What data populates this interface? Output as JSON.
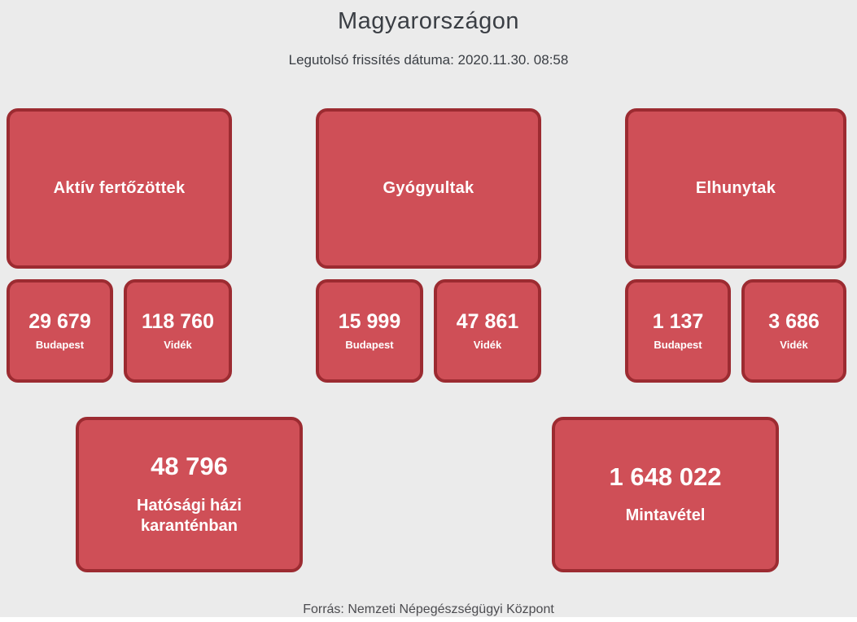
{
  "page": {
    "title": "Magyarországon",
    "subtitle": "Legutolsó frissítés dátuma: 2020.11.30. 08:58",
    "source": "Forrás: Nemzeti Népegészségügyi Központ"
  },
  "colors": {
    "background": "#ebebeb",
    "card_fill": "#cf4f57",
    "card_border": "#9c2b31",
    "card_text": "#ffffff",
    "heading_text": "#3a3e44",
    "source_text": "#4c4c50"
  },
  "categories": [
    {
      "label": "Aktív fertőzöttek",
      "cells": [
        {
          "value": "29 679",
          "label": "Budapest"
        },
        {
          "value": "118 760",
          "label": "Vidék"
        }
      ]
    },
    {
      "label": "Gyógyultak",
      "cells": [
        {
          "value": "15 999",
          "label": "Budapest"
        },
        {
          "value": "47 861",
          "label": "Vidék"
        }
      ]
    },
    {
      "label": "Elhunytak",
      "cells": [
        {
          "value": "1 137",
          "label": "Budapest"
        },
        {
          "value": "3 686",
          "label": "Vidék"
        }
      ]
    }
  ],
  "summary": [
    {
      "value": "48 796",
      "label": "Hatósági házi karanténban"
    },
    {
      "value": "1 648 022",
      "label": "Mintavétel"
    }
  ]
}
